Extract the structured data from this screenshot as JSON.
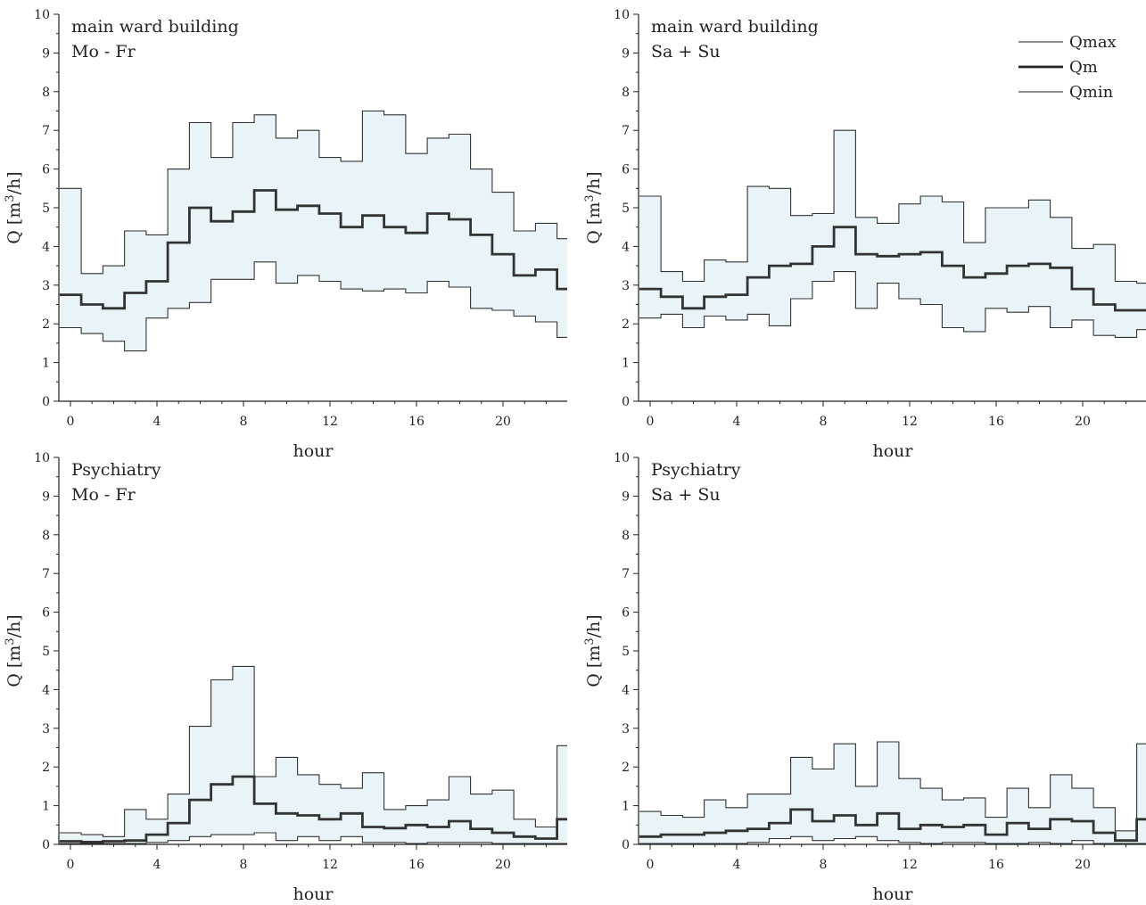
{
  "chart_data": [
    {
      "type": "line",
      "title": [
        "main ward building",
        "Mo - Fr"
      ],
      "xlabel": "hour",
      "ylabel_main": "Q [m",
      "ylabel_sup": "3",
      "ylabel_end": "/h]",
      "xlim": [
        -0.5,
        23
      ],
      "ylim": [
        0,
        10
      ],
      "xticks": [
        0,
        4,
        8,
        12,
        16,
        20
      ],
      "yticks": [
        0,
        1,
        2,
        3,
        4,
        5,
        6,
        7,
        8,
        9,
        10
      ],
      "legend": false,
      "series": [
        {
          "name": "Qmax",
          "values": [
            5.5,
            3.3,
            3.5,
            4.4,
            4.3,
            6.0,
            7.2,
            6.3,
            7.2,
            7.4,
            6.8,
            7.0,
            6.3,
            6.2,
            7.5,
            7.4,
            6.4,
            6.8,
            6.9,
            6.0,
            5.4,
            4.4,
            4.6,
            4.2
          ]
        },
        {
          "name": "Qm",
          "values": [
            2.75,
            2.5,
            2.4,
            2.8,
            3.1,
            4.1,
            5.0,
            4.65,
            4.9,
            5.45,
            4.95,
            5.05,
            4.85,
            4.5,
            4.8,
            4.5,
            4.35,
            4.85,
            4.7,
            4.3,
            3.8,
            3.25,
            3.4,
            2.9
          ]
        },
        {
          "name": "Qmin",
          "values": [
            1.9,
            1.75,
            1.55,
            1.3,
            2.15,
            2.4,
            2.55,
            3.15,
            3.15,
            3.6,
            3.05,
            3.25,
            3.1,
            2.9,
            2.85,
            2.9,
            2.8,
            3.1,
            2.95,
            2.4,
            2.35,
            2.2,
            2.05,
            1.65
          ]
        }
      ]
    },
    {
      "type": "line",
      "title": [
        "main ward building",
        "Sa + Su"
      ],
      "xlabel": "hour",
      "ylabel_main": "Q [m",
      "ylabel_sup": "3",
      "ylabel_end": "/h]",
      "xlim": [
        -0.5,
        23
      ],
      "ylim": [
        0,
        10
      ],
      "xticks": [
        0,
        4,
        8,
        12,
        16,
        20
      ],
      "yticks": [
        0,
        1,
        2,
        3,
        4,
        5,
        6,
        7,
        8,
        9,
        10
      ],
      "legend": true,
      "series": [
        {
          "name": "Qmax",
          "values": [
            5.3,
            3.35,
            3.1,
            3.65,
            3.6,
            5.55,
            5.5,
            4.8,
            4.85,
            7.0,
            4.75,
            4.6,
            5.1,
            5.3,
            5.15,
            4.1,
            5.0,
            5.0,
            5.2,
            4.75,
            3.95,
            4.05,
            3.1,
            3.05
          ]
        },
        {
          "name": "Qm",
          "values": [
            2.9,
            2.7,
            2.4,
            2.7,
            2.75,
            3.2,
            3.5,
            3.55,
            4.0,
            4.5,
            3.8,
            3.75,
            3.8,
            3.85,
            3.5,
            3.2,
            3.3,
            3.5,
            3.55,
            3.45,
            2.9,
            2.5,
            2.35,
            2.35
          ]
        },
        {
          "name": "Qmin",
          "values": [
            2.15,
            2.25,
            1.9,
            2.2,
            2.1,
            2.25,
            1.95,
            2.65,
            3.1,
            3.35,
            2.4,
            3.05,
            2.65,
            2.5,
            1.9,
            1.8,
            2.4,
            2.3,
            2.45,
            1.9,
            2.1,
            1.7,
            1.65,
            1.85
          ]
        }
      ]
    },
    {
      "type": "line",
      "title": [
        "Psychiatry",
        "Mo - Fr"
      ],
      "xlabel": "hour",
      "ylabel_main": "Q [m",
      "ylabel_sup": "3",
      "ylabel_end": "/h]",
      "xlim": [
        -0.5,
        23
      ],
      "ylim": [
        0,
        10
      ],
      "xticks": [
        0,
        4,
        8,
        12,
        16,
        20
      ],
      "yticks": [
        0,
        1,
        2,
        3,
        4,
        5,
        6,
        7,
        8,
        9,
        10
      ],
      "legend": false,
      "series": [
        {
          "name": "Qmax",
          "values": [
            0.3,
            0.25,
            0.2,
            0.9,
            0.65,
            1.3,
            3.05,
            4.25,
            4.6,
            1.75,
            2.25,
            1.8,
            1.55,
            1.45,
            1.85,
            0.9,
            1.0,
            1.15,
            1.75,
            1.3,
            1.4,
            0.65,
            0.45,
            2.55
          ]
        },
        {
          "name": "Qm",
          "values": [
            0.08,
            0.06,
            0.08,
            0.1,
            0.25,
            0.55,
            1.15,
            1.55,
            1.75,
            1.05,
            0.8,
            0.75,
            0.65,
            0.8,
            0.45,
            0.42,
            0.5,
            0.45,
            0.6,
            0.4,
            0.3,
            0.2,
            0.15,
            0.65
          ]
        },
        {
          "name": "Qmin",
          "values": [
            0.02,
            0.02,
            0.02,
            0.02,
            0.05,
            0.1,
            0.2,
            0.25,
            0.25,
            0.3,
            0.1,
            0.2,
            0.1,
            0.2,
            0.05,
            0.05,
            0.02,
            0.05,
            0.05,
            0.05,
            0.02,
            0.02,
            0.02,
            0.02
          ]
        }
      ]
    },
    {
      "type": "line",
      "title": [
        "Psychiatry",
        "Sa + Su"
      ],
      "xlabel": "hour",
      "ylabel_main": "Q [m",
      "ylabel_sup": "3",
      "ylabel_end": "/h]",
      "xlim": [
        -0.5,
        23
      ],
      "ylim": [
        0,
        10
      ],
      "xticks": [
        0,
        4,
        8,
        12,
        16,
        20
      ],
      "yticks": [
        0,
        1,
        2,
        3,
        4,
        5,
        6,
        7,
        8,
        9,
        10
      ],
      "legend": false,
      "series": [
        {
          "name": "Qmax",
          "values": [
            0.85,
            0.75,
            0.7,
            1.15,
            0.95,
            1.3,
            1.3,
            2.25,
            1.95,
            2.6,
            1.5,
            2.65,
            1.7,
            1.45,
            1.15,
            1.2,
            0.7,
            1.45,
            0.95,
            1.8,
            1.45,
            0.95,
            0.35,
            2.6
          ]
        },
        {
          "name": "Qm",
          "values": [
            0.2,
            0.25,
            0.25,
            0.3,
            0.35,
            0.4,
            0.55,
            0.9,
            0.6,
            0.75,
            0.5,
            0.8,
            0.4,
            0.5,
            0.45,
            0.5,
            0.25,
            0.55,
            0.4,
            0.65,
            0.6,
            0.3,
            0.1,
            0.65
          ]
        },
        {
          "name": "Qmin",
          "values": [
            0.02,
            0.02,
            0.02,
            0.02,
            0.02,
            0.05,
            0.15,
            0.2,
            0.1,
            0.15,
            0.2,
            0.1,
            0.05,
            0.02,
            0.05,
            0.05,
            0.02,
            0.02,
            0.05,
            0.02,
            0.1,
            0.02,
            0.02,
            0.02
          ]
        }
      ]
    }
  ]
}
